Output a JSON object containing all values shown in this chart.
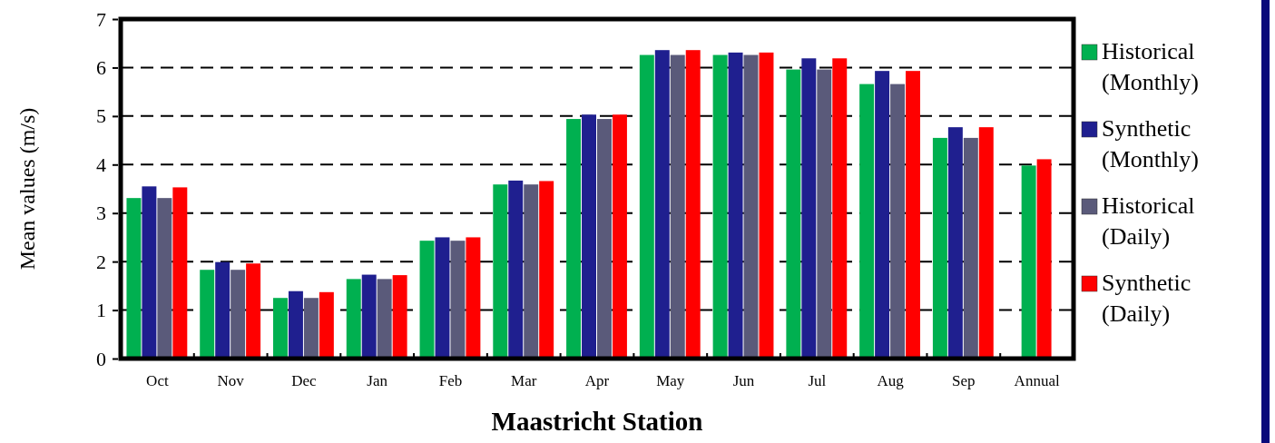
{
  "chart_data": {
    "type": "bar",
    "xlabel": "Maastricht Station",
    "ylabel": "Mean values (m/s)",
    "categories": [
      "Oct",
      "Nov",
      "Dec",
      "Jan",
      "Feb",
      "Mar",
      "Apr",
      "May",
      "Jun",
      "Jul",
      "Aug",
      "Sep",
      "Annual"
    ],
    "series": [
      {
        "name": "Historical (Monthly)",
        "color": "#00b050",
        "values": [
          3.31,
          1.83,
          1.25,
          1.64,
          2.43,
          3.59,
          4.94,
          6.26,
          6.26,
          5.96,
          5.66,
          4.55,
          3.98
        ]
      },
      {
        "name": "Synthetic (Monthly)",
        "color": "#1f1f8f",
        "values": [
          3.55,
          1.99,
          1.39,
          1.73,
          2.5,
          3.67,
          5.03,
          6.36,
          6.31,
          6.19,
          5.93,
          4.77,
          null
        ]
      },
      {
        "name": "Historical (Daily)",
        "color": "#5a5a7a",
        "values": [
          3.31,
          1.83,
          1.25,
          1.64,
          2.43,
          3.59,
          4.94,
          6.26,
          6.26,
          5.96,
          5.66,
          4.55,
          null
        ]
      },
      {
        "name": "Synthetic (Daily)",
        "color": "#ff0000",
        "values": [
          3.53,
          1.96,
          1.37,
          1.72,
          2.5,
          3.66,
          5.03,
          6.36,
          6.31,
          6.19,
          5.93,
          4.77,
          4.11
        ]
      }
    ],
    "ylim": [
      0,
      7
    ],
    "yticks": [
      0,
      1,
      2,
      3,
      4,
      5,
      6,
      7
    ],
    "grid": "y",
    "legend": "right"
  }
}
